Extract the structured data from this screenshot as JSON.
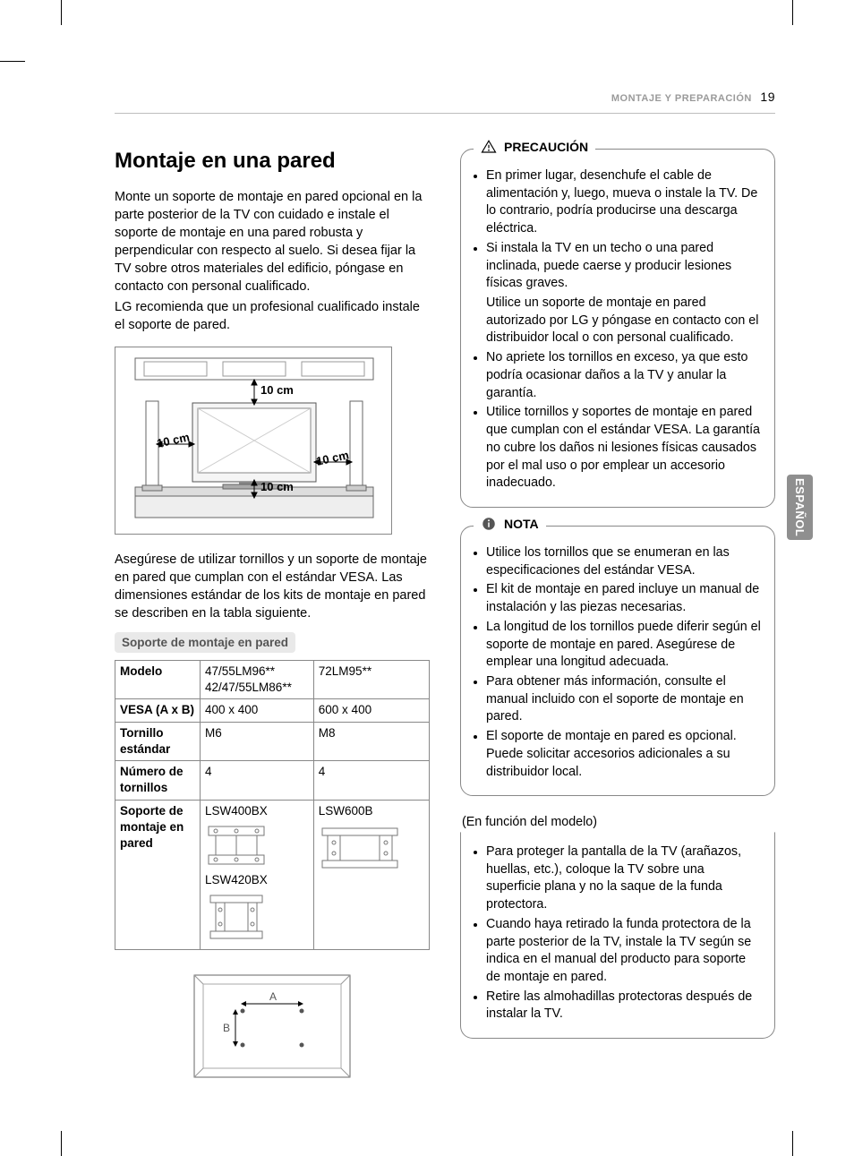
{
  "header": {
    "section": "MONTAJE Y PREPARACIÓN",
    "page": "19"
  },
  "language_tab": "ESPAÑOL",
  "left": {
    "title": "Montaje en una pared",
    "para1": "Monte un soporte de montaje en pared opcional en la parte posterior de la TV con cuidado e instale el soporte de montaje en una pared robusta y perpendicular con respecto al suelo. Si desea fijar la TV sobre otros materiales del edificio, póngase en contacto con personal cualificado.",
    "para2": "LG recomienda que un profesional cualificado instale el soporte de pared.",
    "clearances": {
      "top": "10 cm",
      "left": "10 cm",
      "right": "10 cm",
      "bottom": "10 cm"
    },
    "para3": "Asegúrese de utilizar tornillos y un soporte de montaje en pared que cumplan con el estándar VESA. Las dimensiones estándar de los kits de montaje en pared se describen en la tabla siguiente.",
    "pill": "Soporte de montaje en pared",
    "table": {
      "rows": [
        {
          "label": "Modelo",
          "c1": "47/55LM96**\n42/47/55LM86**",
          "c2": "72LM95**"
        },
        {
          "label": "VESA (A x B)",
          "c1": "400 x 400",
          "c2": "600 x 400"
        },
        {
          "label": "Tornillo estándar",
          "c1": "M6",
          "c2": "M8"
        },
        {
          "label": "Número de tornillos",
          "c1": "4",
          "c2": "4"
        },
        {
          "label": "Soporte de montaje en pared",
          "c1": "LSW400BX",
          "c2": "LSW600B",
          "c1b": "LSW420BX"
        }
      ]
    },
    "vesa_labels": {
      "a": "A",
      "b": "B"
    }
  },
  "right": {
    "precaution": {
      "title": "PRECAUCIÓN",
      "items": [
        "En primer lugar, desenchufe el cable de alimentación y, luego, mueva o instale la TV. De lo contrario, podría producirse una descarga eléctrica.",
        "Si instala la TV en un techo o una pared inclinada, puede caerse y producir lesiones físicas graves.",
        "__NOBULLET__Utilice un soporte de montaje en pared autorizado por LG y póngase en contacto con el distribuidor local o con personal cualificado.",
        "No apriete los tornillos en exceso, ya que esto podría ocasionar daños a la TV y anular la garantía.",
        "Utilice tornillos y soportes de montaje en pared que cumplan con el estándar VESA. La garantía no cubre los daños ni lesiones físicas causados por el mal uso o por emplear un accesorio inadecuado."
      ]
    },
    "note": {
      "title": "NOTA",
      "items": [
        "Utilice los tornillos que se enumeran en las especificaciones del estándar VESA.",
        "El kit de montaje en pared incluye un manual de instalación y las piezas necesarias.",
        "La longitud de los tornillos puede diferir según el soporte de montaje en pared. Asegúrese de emplear una longitud adecuada.",
        "Para obtener más información, consulte el manual incluido con el soporte de montaje en pared.",
        "El soporte de montaje en pared es opcional. Puede solicitar accesorios adicionales a su distribuidor local."
      ]
    },
    "model_note": "(En función del modelo)",
    "extra": {
      "items": [
        "Para proteger la pantalla de la TV (arañazos, huellas, etc.), coloque la TV sobre una superficie plana y no la saque de la funda protectora.",
        "Cuando haya retirado la funda protectora de la parte posterior de la TV, instale la TV según se indica en el manual del producto para soporte de montaje en pared.",
        "Retire las almohadillas protectoras después de instalar la TV."
      ]
    }
  },
  "colors": {
    "rule": "#bdbdbd",
    "muted": "#9a9a9a",
    "box": "#888888",
    "pill_bg": "#e9e9e9",
    "tab_bg": "#8f8f8f"
  }
}
